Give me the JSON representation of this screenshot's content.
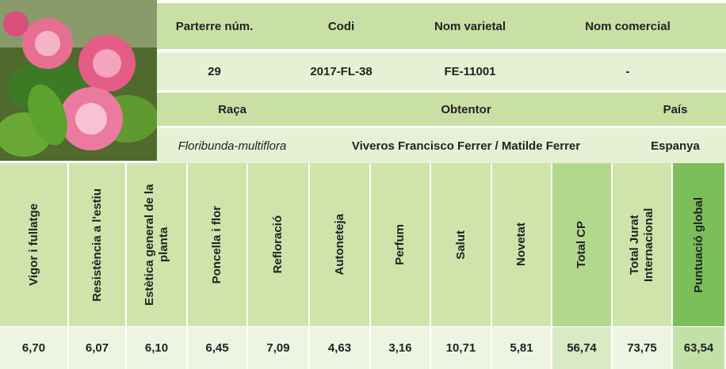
{
  "header": {
    "labels": [
      "Parterre núm.",
      "Codi",
      "Nom varietal",
      "Nom comercial"
    ],
    "values": [
      "29",
      "2017-FL-38",
      "FE-11001",
      "-"
    ]
  },
  "origin": {
    "labels": [
      "Raça",
      "Obtentor",
      "País"
    ],
    "values": [
      "Floribunda-multiflora",
      "Viveros Francisco Ferrer / Matilde Ferrer",
      "Espanya"
    ]
  },
  "scores": {
    "headers": [
      "Vigor i fullatge",
      "Resistència a l'estiu",
      "Estètica general de la planta",
      "Poncella i flor",
      "Refloració",
      "Autoneteja",
      "Perfum",
      "Salut",
      "Novetat",
      "Total CP",
      "Total Jurat Internacional",
      "Puntuació global"
    ],
    "values": [
      "6,70",
      "6,07",
      "6,10",
      "6,45",
      "7,09",
      "4,63",
      "3,16",
      "10,71",
      "5,81",
      "56,74",
      "73,75",
      "63,54"
    ]
  }
}
